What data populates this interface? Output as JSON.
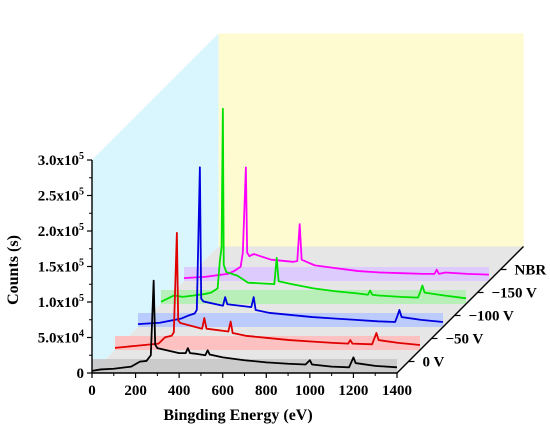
{
  "chart_data": {
    "type": "line",
    "subtype": "3d-waterfall",
    "title": "",
    "xlabel": "Bingding Energy (eV)",
    "ylabel": "Counts (s)",
    "zlabel": "",
    "xlim": [
      0,
      1400
    ],
    "ylim": [
      0,
      300000
    ],
    "x_ticks": [
      "0",
      "200",
      "400",
      "600",
      "800",
      "1000",
      "1200",
      "1400"
    ],
    "y_ticks": [
      "0",
      "5.0x10^4",
      "1.0x10^5",
      "1.5x10^5",
      "2.0x10^5",
      "2.5x10^5",
      "3.0x10^5"
    ],
    "y_tick_parts": [
      {
        "mant": "0",
        "exp": ""
      },
      {
        "mant": "5.0x10",
        "exp": "4"
      },
      {
        "mant": "1.0x10",
        "exp": "5"
      },
      {
        "mant": "1.5x10",
        "exp": "5"
      },
      {
        "mant": "2.0x10",
        "exp": "5"
      },
      {
        "mant": "2.5x10",
        "exp": "5"
      },
      {
        "mant": "3.0x10",
        "exp": "5"
      }
    ],
    "z_categories": [
      "0 V",
      "−50 V",
      "−100 V",
      "−150 V",
      "NBR"
    ],
    "grid": false,
    "series": [
      {
        "name": "0 V",
        "color": "#000000",
        "fill": "#c8c8c8",
        "points": [
          [
            0,
            3000
          ],
          [
            40,
            5000
          ],
          [
            100,
            6000
          ],
          [
            180,
            9000
          ],
          [
            220,
            16000
          ],
          [
            250,
            17000
          ],
          [
            270,
            25000
          ],
          [
            283,
            130000
          ],
          [
            290,
            40000
          ],
          [
            300,
            35000
          ],
          [
            400,
            28000
          ],
          [
            430,
            28000
          ],
          [
            440,
            35000
          ],
          [
            450,
            28000
          ],
          [
            480,
            27000
          ],
          [
            520,
            25000
          ],
          [
            531,
            32000
          ],
          [
            540,
            26000
          ],
          [
            600,
            22000
          ],
          [
            700,
            18000
          ],
          [
            800,
            15000
          ],
          [
            900,
            13000
          ],
          [
            980,
            12000
          ],
          [
            1000,
            18000
          ],
          [
            1010,
            12000
          ],
          [
            1100,
            9000
          ],
          [
            1180,
            8000
          ],
          [
            1190,
            15000
          ],
          [
            1200,
            22000
          ],
          [
            1210,
            14000
          ],
          [
            1300,
            10000
          ],
          [
            1400,
            8000
          ]
        ]
      },
      {
        "name": "−50 V",
        "color": "#e00000",
        "fill": "#ffbcbc",
        "points": [
          [
            0,
            3000
          ],
          [
            100,
            6000
          ],
          [
            200,
            9000
          ],
          [
            230,
            18000
          ],
          [
            260,
            20000
          ],
          [
            270,
            25000
          ],
          [
            284,
            165000
          ],
          [
            290,
            42000
          ],
          [
            300,
            38000
          ],
          [
            400,
            30000
          ],
          [
            410,
            45000
          ],
          [
            420,
            30000
          ],
          [
            520,
            26000
          ],
          [
            531,
            40000
          ],
          [
            540,
            24000
          ],
          [
            600,
            20000
          ],
          [
            700,
            17000
          ],
          [
            800,
            14000
          ],
          [
            900,
            12000
          ],
          [
            1000,
            10000
          ],
          [
            1070,
            9000
          ],
          [
            1080,
            14000
          ],
          [
            1090,
            9000
          ],
          [
            1180,
            8000
          ],
          [
            1190,
            16000
          ],
          [
            1200,
            24000
          ],
          [
            1210,
            14000
          ],
          [
            1300,
            10000
          ],
          [
            1400,
            7000
          ]
        ]
      },
      {
        "name": "−100 V",
        "color": "#0000e0",
        "fill": "#b6c8ff",
        "points": [
          [
            0,
            4000
          ],
          [
            100,
            6000
          ],
          [
            200,
            12000
          ],
          [
            230,
            16000
          ],
          [
            260,
            19000
          ],
          [
            270,
            24000
          ],
          [
            284,
            225000
          ],
          [
            290,
            40000
          ],
          [
            300,
            36000
          ],
          [
            390,
            30000
          ],
          [
            400,
            42000
          ],
          [
            410,
            32000
          ],
          [
            520,
            28000
          ],
          [
            531,
            42000
          ],
          [
            540,
            24000
          ],
          [
            600,
            20000
          ],
          [
            700,
            17000
          ],
          [
            800,
            14000
          ],
          [
            900,
            12000
          ],
          [
            1000,
            10000
          ],
          [
            1100,
            8000
          ],
          [
            1180,
            7000
          ],
          [
            1190,
            15000
          ],
          [
            1200,
            24000
          ],
          [
            1210,
            14000
          ],
          [
            1300,
            10000
          ],
          [
            1400,
            7000
          ]
        ]
      },
      {
        "name": "−150 V",
        "color": "#00e000",
        "fill": "#b2f0b2",
        "points": [
          [
            0,
            3000
          ],
          [
            60,
            12000
          ],
          [
            100,
            10000
          ],
          [
            150,
            12000
          ],
          [
            200,
            14000
          ],
          [
            230,
            16000
          ],
          [
            260,
            22000
          ],
          [
            270,
            60000
          ],
          [
            278,
            80000
          ],
          [
            284,
            275000
          ],
          [
            288,
            55000
          ],
          [
            300,
            45000
          ],
          [
            350,
            40000
          ],
          [
            400,
            30000
          ],
          [
            520,
            28000
          ],
          [
            531,
            65000
          ],
          [
            540,
            32000
          ],
          [
            600,
            28000
          ],
          [
            700,
            22000
          ],
          [
            800,
            18000
          ],
          [
            900,
            15000
          ],
          [
            950,
            13000
          ],
          [
            960,
            19000
          ],
          [
            970,
            13000
          ],
          [
            1000,
            12000
          ],
          [
            1100,
            10000
          ],
          [
            1180,
            9000
          ],
          [
            1190,
            17000
          ],
          [
            1200,
            26000
          ],
          [
            1210,
            16000
          ],
          [
            1300,
            12000
          ],
          [
            1400,
            8000
          ]
        ]
      },
      {
        "name": "NBR",
        "color": "#ff00ff",
        "fill": "#dcc8ff",
        "points": [
          [
            0,
            4000
          ],
          [
            100,
            6000
          ],
          [
            150,
            8000
          ],
          [
            200,
            10000
          ],
          [
            230,
            14000
          ],
          [
            260,
            20000
          ],
          [
            270,
            40000
          ],
          [
            284,
            160000
          ],
          [
            290,
            40000
          ],
          [
            300,
            35000
          ],
          [
            320,
            38000
          ],
          [
            400,
            30000
          ],
          [
            500,
            27000
          ],
          [
            520,
            28000
          ],
          [
            531,
            80000
          ],
          [
            540,
            30000
          ],
          [
            600,
            22000
          ],
          [
            700,
            18000
          ],
          [
            800,
            14000
          ],
          [
            900,
            12000
          ],
          [
            1000,
            11000
          ],
          [
            1100,
            10000
          ],
          [
            1150,
            10000
          ],
          [
            1160,
            16000
          ],
          [
            1170,
            10000
          ],
          [
            1200,
            12000
          ],
          [
            1300,
            10000
          ],
          [
            1400,
            9000
          ]
        ]
      }
    ],
    "panel_colors": {
      "back_wall": "#fffbd0",
      "side_wall": "#d9f6ff",
      "floor": "#e6e6e6"
    }
  }
}
